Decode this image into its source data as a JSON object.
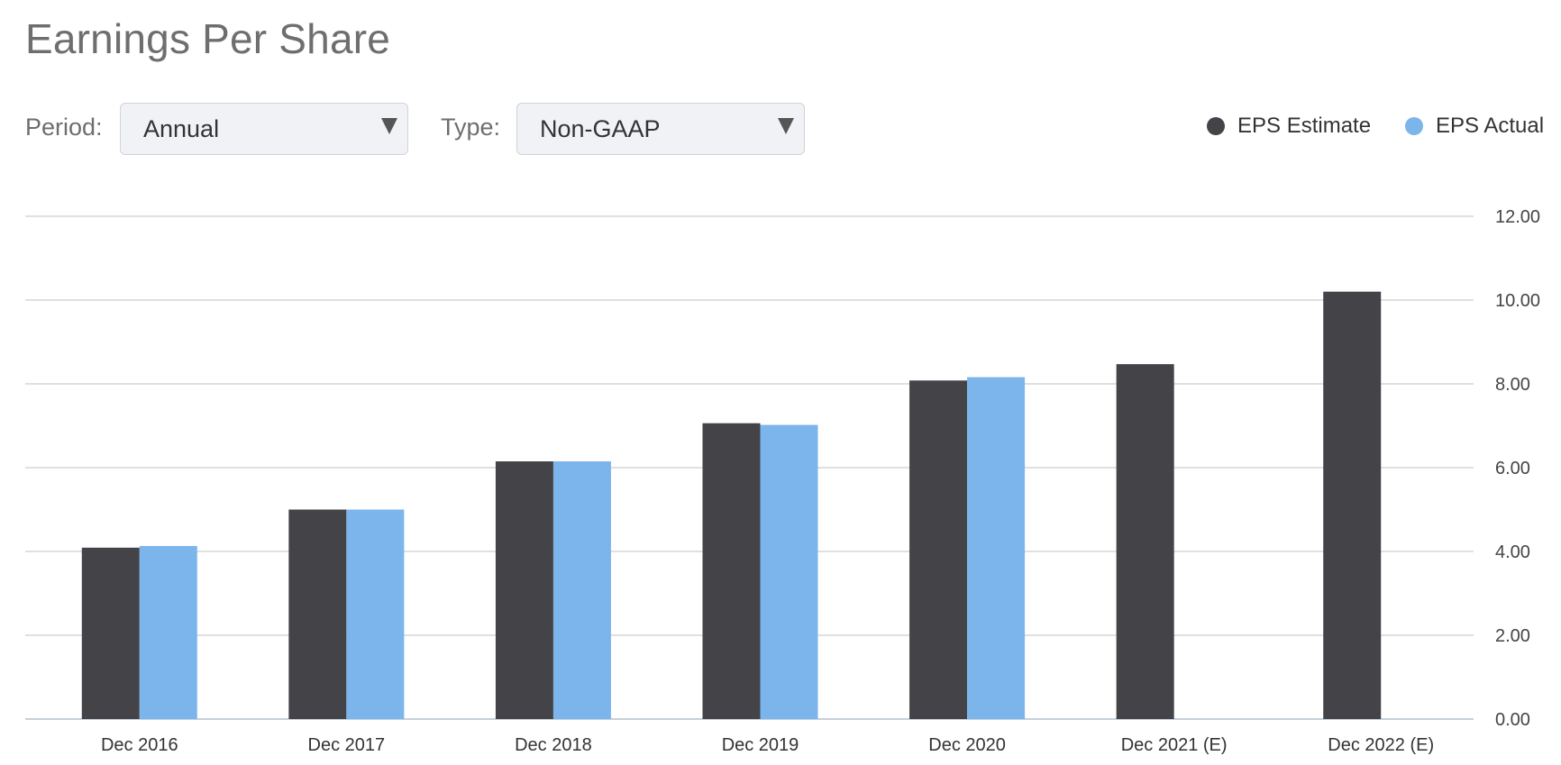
{
  "header": {
    "title": "Earnings Per Share"
  },
  "filters": {
    "period": {
      "label": "Period:",
      "value": "Annual"
    },
    "type": {
      "label": "Type:",
      "value": "Non-GAAP"
    }
  },
  "legend": [
    {
      "label": "EPS Estimate",
      "color": "#434348"
    },
    {
      "label": "EPS Actual",
      "color": "#7cb5ec"
    }
  ],
  "chart_data": {
    "type": "bar",
    "categories": [
      "Dec 2016",
      "Dec 2017",
      "Dec 2018",
      "Dec 2019",
      "Dec 2020",
      "Dec 2021 (E)",
      "Dec 2022 (E)"
    ],
    "series": [
      {
        "name": "EPS Estimate",
        "color": "#434348",
        "values": [
          4.09,
          5.0,
          6.15,
          7.06,
          8.08,
          8.47,
          10.2
        ]
      },
      {
        "name": "EPS Actual",
        "color": "#7cb5ec",
        "values": [
          4.13,
          5.0,
          6.15,
          7.02,
          8.16,
          null,
          null
        ]
      }
    ],
    "ylim": [
      0,
      12
    ],
    "yticks": [
      "0.00",
      "2.00",
      "4.00",
      "6.00",
      "8.00",
      "10.00",
      "12.00"
    ],
    "grid": true,
    "legend_position": "top-right",
    "y_axis_side": "right"
  }
}
